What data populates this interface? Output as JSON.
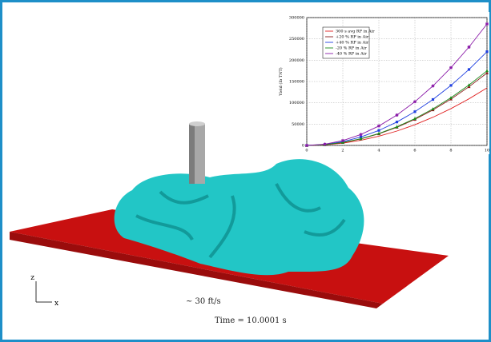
{
  "scene": {
    "velocity": "~ 30 ft/s",
    "time": "Time = 10.0001 s",
    "axis_z": "z",
    "axis_x": "x"
  },
  "chart_data": {
    "type": "line",
    "y_label": "Yield (lb TNT)",
    "x": [
      0,
      1,
      2,
      3,
      4,
      5,
      6,
      7,
      8,
      9,
      10
    ],
    "xlim": [
      0,
      10
    ],
    "xticks": [
      0,
      2,
      4,
      6,
      8,
      10
    ],
    "ylim": [
      0,
      300000
    ],
    "yticks": [
      0,
      50000,
      100000,
      150000,
      200000,
      250000,
      300000
    ],
    "grid": true,
    "legend": "upper left",
    "series": [
      {
        "name": "300 s avg RP in Air",
        "color": "#e02020",
        "marker": "none",
        "values": [
          0,
          1350,
          5400,
          12150,
          21600,
          33750,
          48600,
          66150,
          86400,
          109350,
          135000
        ]
      },
      {
        "name": "+20 % RP in Air",
        "color": "#8b1a1a",
        "marker": "triangle",
        "values": [
          0,
          1700,
          6800,
          15300,
          27200,
          42500,
          61200,
          83300,
          108800,
          137700,
          170000
        ]
      },
      {
        "name": "+40 % RP in Air",
        "color": "#1f3fe0",
        "marker": "square",
        "values": [
          0,
          2200,
          8800,
          19800,
          35200,
          55000,
          79200,
          107800,
          140800,
          178200,
          220000
        ]
      },
      {
        "name": "-20 % RP in Air",
        "color": "#1a8a1a",
        "marker": "triangle",
        "values": [
          0,
          1750,
          7000,
          15750,
          28000,
          43750,
          63000,
          85750,
          112000,
          141750,
          175000
        ]
      },
      {
        "name": "-40 % RP in Air",
        "color": "#8a1aa8",
        "marker": "star",
        "values": [
          0,
          2850,
          11400,
          25650,
          45600,
          71250,
          102600,
          139650,
          182400,
          230850,
          285000
        ]
      }
    ]
  }
}
